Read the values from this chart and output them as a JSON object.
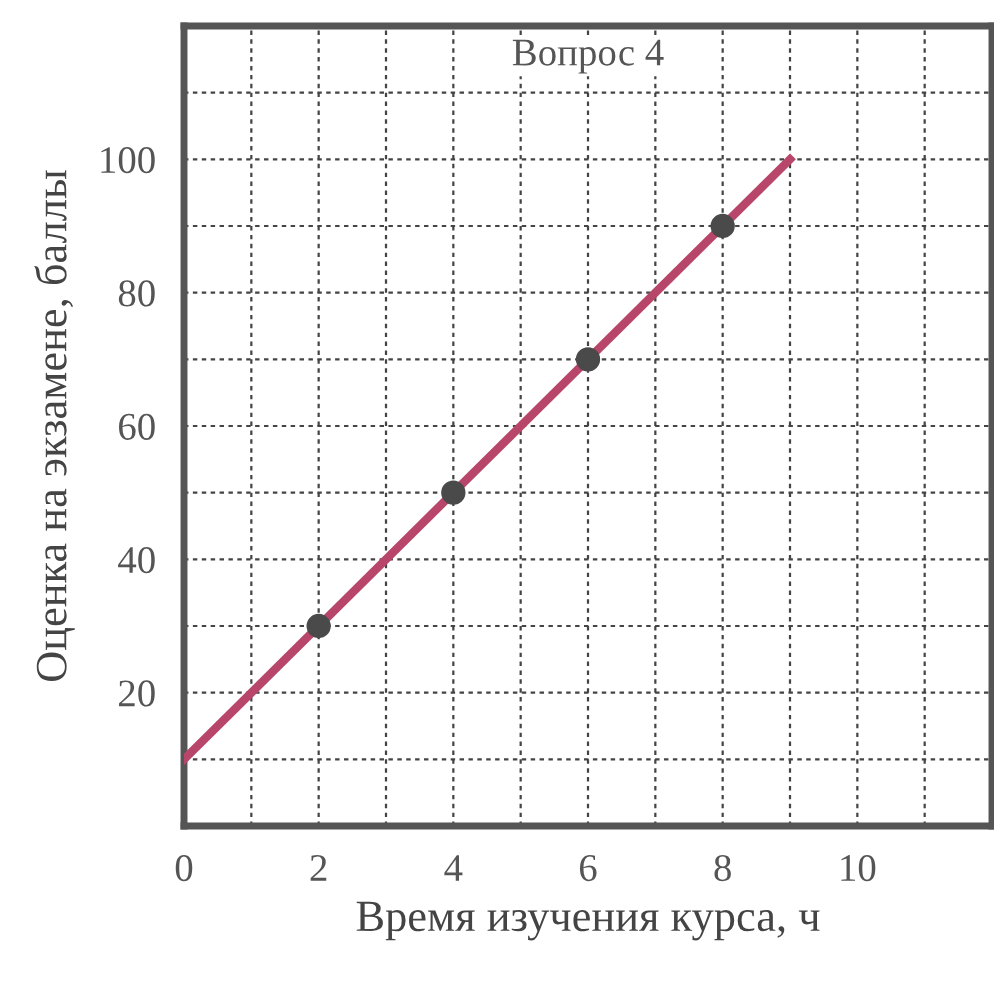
{
  "chart_data": {
    "type": "line",
    "title": "Вопрос 4",
    "xlabel": "Время изучения курса, ч",
    "ylabel": "Оценка на экзамене, баллы",
    "series": [
      {
        "color": "#b8456a",
        "x": [
          0,
          9
        ],
        "values": [
          10,
          100
        ],
        "marker": "none",
        "line_style": "solid"
      },
      {
        "type": "scatter",
        "color": "#4a4a4a",
        "x": [
          2,
          4,
          6,
          8
        ],
        "values": [
          30,
          50,
          70,
          90
        ],
        "marker": "circle"
      }
    ],
    "xlim": [
      0,
      12
    ],
    "ylim": [
      0,
      120
    ],
    "xticks": [
      0,
      {
        "value": 1,
        "label": null
      },
      2,
      {
        "value": 3,
        "label": null
      },
      4,
      {
        "value": 5,
        "label": null
      },
      6,
      {
        "value": 7,
        "label": null
      },
      8,
      {
        "value": 9,
        "label": null
      },
      10,
      {
        "value": 11,
        "label": null
      },
      {
        "value": 12,
        "label": null
      }
    ],
    "yticks": [
      {
        "value": 0,
        "label": null
      },
      {
        "value": 10,
        "label": null
      },
      20,
      {
        "value": 30,
        "label": null
      },
      40,
      {
        "value": 50,
        "label": null
      },
      60,
      {
        "value": 70,
        "label": null
      },
      80,
      {
        "value": 90,
        "label": null
      },
      100,
      {
        "value": 110,
        "label": null
      },
      {
        "value": 120,
        "label": null
      }
    ],
    "grid": true
  }
}
